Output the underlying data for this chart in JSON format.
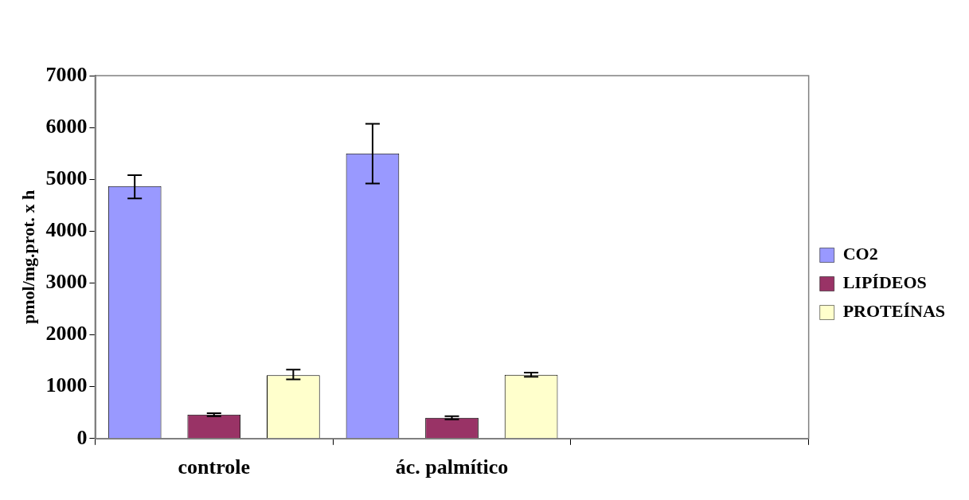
{
  "chart_data": {
    "type": "bar",
    "ylabel": "pmol/mg.prot. x h",
    "categories": [
      "controle",
      "ác. palmítico",
      null
    ],
    "series": [
      {
        "name": "CO2",
        "color": "#9999ff",
        "values": [
          4870,
          5500,
          null
        ],
        "errors": [
          [
            4630,
            5080
          ],
          [
            4920,
            6070
          ],
          null
        ]
      },
      {
        "name": "LIPÍDEOS",
        "color": "#993366",
        "values": [
          460,
          400,
          null
        ],
        "errors": [
          [
            430,
            490
          ],
          [
            370,
            430
          ],
          null
        ]
      },
      {
        "name": "PROTEÍNAS",
        "color": "#ffffcc",
        "values": [
          1220,
          1230,
          null
        ],
        "errors": [
          [
            1140,
            1330
          ],
          [
            1190,
            1270
          ],
          null
        ]
      }
    ],
    "ylim": [
      0,
      7000
    ],
    "yticks": [
      0,
      1000,
      2000,
      3000,
      4000,
      5000,
      6000,
      7000
    ],
    "grid": false,
    "legend": "right"
  }
}
